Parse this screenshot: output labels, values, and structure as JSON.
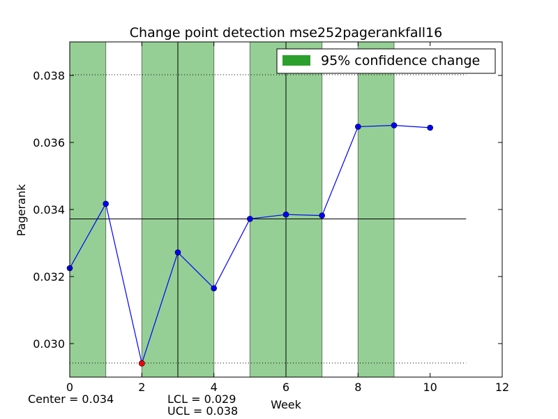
{
  "chart_data": {
    "type": "line",
    "title": "Change point detection mse252pagerankfall16",
    "xlabel": "Week",
    "ylabel": "Pagerank",
    "xlim": [
      0,
      12
    ],
    "ylim": [
      0.029,
      0.039
    ],
    "xticks": [
      0,
      2,
      4,
      6,
      8,
      10,
      12
    ],
    "yticks": [
      0.03,
      0.032,
      0.034,
      0.036,
      0.038
    ],
    "xtick_labels": [
      "0",
      "2",
      "4",
      "6",
      "8",
      "10",
      "12"
    ],
    "ytick_labels": [
      "0.030",
      "0.032",
      "0.034",
      "0.036",
      "0.038"
    ],
    "grid": false,
    "series": [
      {
        "x": [
          0,
          1,
          2,
          3,
          4,
          5,
          6,
          7,
          8,
          9,
          10
        ],
        "y": [
          0.03225,
          0.03417,
          0.02941,
          0.03272,
          0.03165,
          0.03372,
          0.03385,
          0.03382,
          0.03647,
          0.03651,
          0.03644
        ],
        "color": "#0000ff"
      }
    ],
    "out_of_control_points": [
      {
        "x": 2,
        "y": 0.02941,
        "color": "#ff0000"
      }
    ],
    "center_line": {
      "value": 0.03372,
      "x_range": [
        0,
        11
      ]
    },
    "control_limits": {
      "lcl": 0.02942,
      "ucl": 0.03802,
      "x_range": [
        0,
        11
      ]
    },
    "shaded_regions": [
      [
        0,
        1
      ],
      [
        2,
        3
      ],
      [
        3,
        4
      ],
      [
        5,
        6
      ],
      [
        6,
        7
      ],
      [
        8,
        9
      ]
    ],
    "shade_color": "#2ca02c",
    "change_lines": [
      3,
      6
    ],
    "legend": {
      "label": "95% confidence change",
      "position": "upper right"
    },
    "annotations": {
      "center": "Center = 0.034",
      "lcl": "LCL = 0.029",
      "ucl": "UCL = 0.038"
    }
  }
}
